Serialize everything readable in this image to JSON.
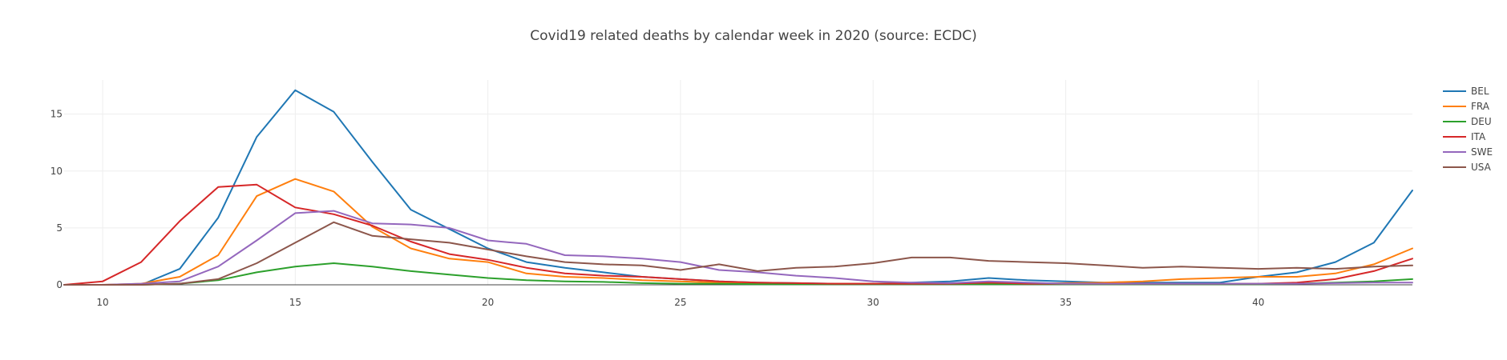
{
  "chart_data": {
    "type": "line",
    "title": "Covid19 related deaths by calendar week in 2020 (source: ECDC)",
    "xlabel": "",
    "ylabel": "",
    "xlim": [
      9,
      44
    ],
    "ylim": [
      0,
      18
    ],
    "x_ticks": [
      10,
      15,
      20,
      25,
      30,
      35,
      40
    ],
    "y_ticks": [
      0,
      5,
      10,
      15
    ],
    "grid": true,
    "legend_position": "right",
    "x": [
      9,
      10,
      11,
      12,
      13,
      14,
      15,
      16,
      17,
      18,
      19,
      20,
      21,
      22,
      23,
      24,
      25,
      26,
      27,
      28,
      29,
      30,
      31,
      32,
      33,
      34,
      35,
      36,
      37,
      38,
      39,
      40,
      41,
      42,
      43,
      44
    ],
    "series": [
      {
        "name": "BEL",
        "color": "#1f77b4",
        "values": [
          0,
          0,
          0,
          1.4,
          5.9,
          13,
          17.1,
          15.2,
          10.8,
          6.6,
          4.9,
          3.2,
          2.0,
          1.5,
          1.1,
          0.7,
          0.5,
          0.3,
          0.2,
          0.15,
          0.1,
          0.1,
          0.2,
          0.3,
          0.6,
          0.4,
          0.3,
          0.2,
          0.2,
          0.2,
          0.2,
          0.7,
          1.1,
          2.0,
          3.7,
          8.3
        ]
      },
      {
        "name": "FRA",
        "color": "#ff7f0e",
        "values": [
          0,
          0,
          0.1,
          0.7,
          2.6,
          7.8,
          9.3,
          8.2,
          5.1,
          3.2,
          2.3,
          2.0,
          1.0,
          0.7,
          0.6,
          0.4,
          0.3,
          0.2,
          0.15,
          0.1,
          0.1,
          0.1,
          0.1,
          0.1,
          0.1,
          0.1,
          0.15,
          0.2,
          0.3,
          0.5,
          0.6,
          0.7,
          0.7,
          1.0,
          1.8,
          3.2
        ]
      },
      {
        "name": "DEU",
        "color": "#2ca02c",
        "values": [
          0,
          0,
          0,
          0.1,
          0.4,
          1.1,
          1.6,
          1.9,
          1.6,
          1.2,
          0.9,
          0.6,
          0.4,
          0.3,
          0.25,
          0.15,
          0.1,
          0.1,
          0.05,
          0.05,
          0.05,
          0.05,
          0.05,
          0.05,
          0.05,
          0.05,
          0.05,
          0.05,
          0.05,
          0.05,
          0.05,
          0.05,
          0.1,
          0.2,
          0.3,
          0.5
        ]
      },
      {
        "name": "ITA",
        "color": "#d62728",
        "values": [
          0,
          0.3,
          2.0,
          5.6,
          8.6,
          8.8,
          6.8,
          6.2,
          5.2,
          3.8,
          2.7,
          2.2,
          1.5,
          1.0,
          0.8,
          0.7,
          0.5,
          0.3,
          0.2,
          0.15,
          0.1,
          0.1,
          0.1,
          0.1,
          0.2,
          0.1,
          0.1,
          0.1,
          0.1,
          0.1,
          0.1,
          0.1,
          0.2,
          0.5,
          1.2,
          2.3
        ]
      },
      {
        "name": "SWE",
        "color": "#9467bd",
        "values": [
          0,
          0,
          0.1,
          0.3,
          1.6,
          3.9,
          6.3,
          6.5,
          5.4,
          5.3,
          5.0,
          3.9,
          3.6,
          2.6,
          2.5,
          2.3,
          2.0,
          1.3,
          1.1,
          0.8,
          0.6,
          0.3,
          0.2,
          0.15,
          0.3,
          0.2,
          0.1,
          0.1,
          0.1,
          0.1,
          0.1,
          0.1,
          0.1,
          0.15,
          0.2,
          0.2
        ]
      },
      {
        "name": "USA",
        "color": "#8c564b",
        "values": [
          0,
          0,
          0,
          0.1,
          0.5,
          1.9,
          3.7,
          5.5,
          4.3,
          4.0,
          3.7,
          3.1,
          2.5,
          2.0,
          1.8,
          1.7,
          1.3,
          1.8,
          1.2,
          1.5,
          1.6,
          1.9,
          2.4,
          2.4,
          2.1,
          2.0,
          1.9,
          1.7,
          1.5,
          1.6,
          1.5,
          1.4,
          1.5,
          1.4,
          1.6,
          1.7
        ]
      }
    ]
  }
}
